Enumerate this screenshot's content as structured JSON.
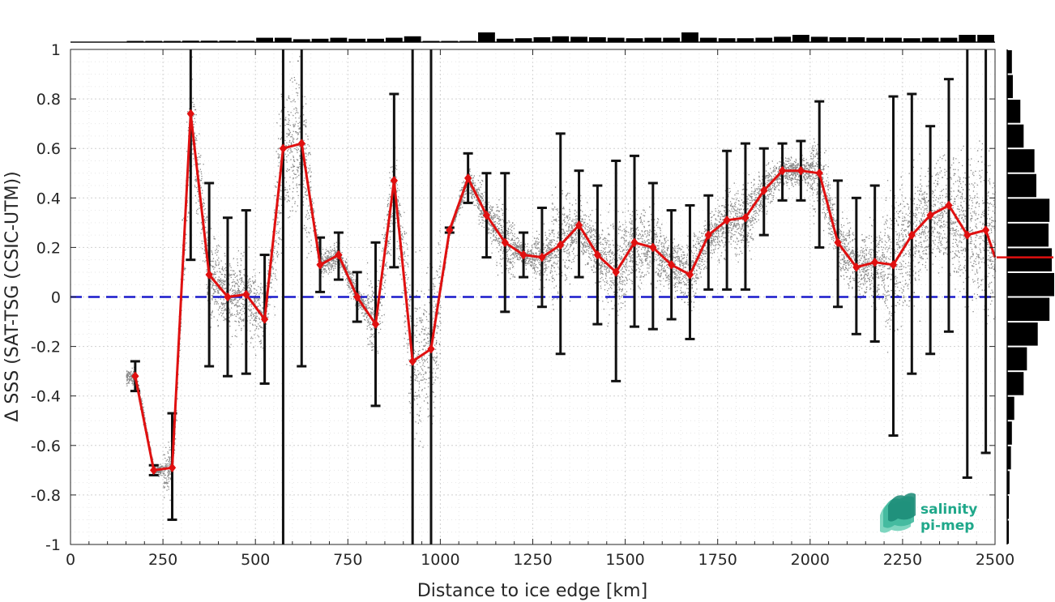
{
  "chart_data": {
    "type": "line",
    "xlabel": "Distance to ice edge [km]",
    "ylabel": "Δ SSS (SAT-TSG (CSIC-UTM))",
    "xlim": [
      0,
      2500
    ],
    "ylim": [
      -1,
      1
    ],
    "xticks": [
      "0",
      "250",
      "500",
      "750",
      "1000",
      "1250",
      "1500",
      "1750",
      "2000",
      "2250",
      "2500"
    ],
    "yticks": [
      "-1",
      "-0.8",
      "-0.6",
      "-0.4",
      "-0.2",
      "0",
      "0.2",
      "0.4",
      "0.6",
      "0.8",
      "1"
    ],
    "grid": true,
    "reference_line": {
      "y": 0,
      "color": "#1a1acc",
      "style": "dashed"
    },
    "series": [
      {
        "color": "#e01010",
        "x": [
          175,
          225,
          275,
          325,
          375,
          425,
          475,
          525,
          575,
          625,
          675,
          725,
          775,
          825,
          875,
          925,
          975,
          1025,
          1075,
          1125,
          1175,
          1225,
          1275,
          1325,
          1375,
          1425,
          1475,
          1525,
          1575,
          1625,
          1675,
          1725,
          1775,
          1825,
          1875,
          1925,
          1975,
          2025,
          2075,
          2125,
          2175,
          2225,
          2275,
          2325,
          2375,
          2425,
          2475,
          2500
        ],
        "y": [
          -0.32,
          -0.7,
          -0.69,
          0.74,
          0.09,
          0.0,
          0.01,
          -0.09,
          0.6,
          0.62,
          0.13,
          0.17,
          0.0,
          -0.11,
          0.47,
          -0.26,
          -0.21,
          0.27,
          0.48,
          0.33,
          0.22,
          0.17,
          0.16,
          0.21,
          0.29,
          0.17,
          0.1,
          0.22,
          0.2,
          0.13,
          0.09,
          0.25,
          0.31,
          0.32,
          0.43,
          0.51,
          0.51,
          0.5,
          0.22,
          0.12,
          0.14,
          0.13,
          0.25,
          0.33,
          0.37,
          0.25,
          0.27,
          0.16
        ],
        "err_lo": [
          -0.38,
          -0.72,
          -0.9,
          0.15,
          -0.28,
          -0.32,
          -0.31,
          -0.35,
          -1.0,
          -0.28,
          0.02,
          0.07,
          -0.1,
          -0.44,
          0.12,
          -1.0,
          -1.0,
          0.26,
          0.38,
          0.16,
          -0.06,
          0.08,
          -0.04,
          -0.23,
          0.08,
          -0.11,
          -0.34,
          -0.12,
          -0.13,
          -0.09,
          -0.17,
          0.03,
          0.03,
          0.03,
          0.25,
          0.39,
          0.39,
          0.2,
          -0.04,
          -0.15,
          -0.18,
          -0.56,
          -0.31,
          -0.23,
          -0.14,
          -0.73,
          -0.63,
          null
        ],
        "err_hi": [
          -0.26,
          -0.68,
          -0.47,
          1.0,
          0.46,
          0.32,
          0.35,
          0.17,
          1.0,
          1.0,
          0.24,
          0.26,
          0.1,
          0.22,
          0.82,
          1.0,
          1.0,
          0.28,
          0.58,
          0.5,
          0.5,
          0.26,
          0.36,
          0.66,
          0.51,
          0.45,
          0.55,
          0.57,
          0.46,
          0.35,
          0.37,
          0.41,
          0.59,
          0.62,
          0.6,
          0.62,
          0.63,
          0.79,
          0.47,
          0.4,
          0.45,
          0.81,
          0.82,
          0.69,
          0.88,
          1.0,
          1.0,
          null
        ]
      }
    ],
    "top_histogram": {
      "x": [
        175,
        225,
        275,
        325,
        375,
        425,
        475,
        525,
        575,
        625,
        675,
        725,
        775,
        825,
        875,
        925,
        975,
        1025,
        1075,
        1125,
        1175,
        1225,
        1275,
        1325,
        1375,
        1425,
        1475,
        1525,
        1575,
        1625,
        1675,
        1725,
        1775,
        1825,
        1875,
        1925,
        1975,
        2025,
        2075,
        2125,
        2175,
        2225,
        2275,
        2325,
        2375,
        2425,
        2475
      ],
      "counts": [
        0.1,
        0.1,
        0.1,
        0.15,
        0.15,
        0.15,
        0.15,
        0.45,
        0.45,
        0.3,
        0.35,
        0.45,
        0.35,
        0.35,
        0.45,
        0.6,
        0.1,
        0.1,
        0.1,
        1.0,
        0.35,
        0.4,
        0.5,
        0.6,
        0.55,
        0.5,
        0.45,
        0.4,
        0.45,
        0.45,
        1.0,
        0.45,
        0.4,
        0.4,
        0.45,
        0.55,
        0.75,
        0.55,
        0.5,
        0.5,
        0.45,
        0.45,
        0.4,
        0.45,
        0.45,
        0.75,
        0.75
      ]
    },
    "right_histogram": {
      "y": [
        -0.95,
        -0.85,
        -0.75,
        -0.65,
        -0.55,
        -0.45,
        -0.35,
        -0.25,
        -0.15,
        -0.05,
        0.05,
        0.15,
        0.25,
        0.35,
        0.45,
        0.55,
        0.65,
        0.75,
        0.85,
        0.95
      ],
      "counts": [
        0.03,
        0.03,
        0.05,
        0.08,
        0.1,
        0.15,
        0.35,
        0.42,
        0.65,
        0.9,
        1.0,
        0.95,
        0.88,
        0.9,
        0.62,
        0.58,
        0.35,
        0.28,
        0.12,
        0.1
      ],
      "mean": 0.16,
      "mean_color": "#e01010"
    },
    "scatter_color": "#888888"
  },
  "logo": {
    "line1": "salinity",
    "line2": "pi-mep",
    "color": "#1fa88a"
  }
}
